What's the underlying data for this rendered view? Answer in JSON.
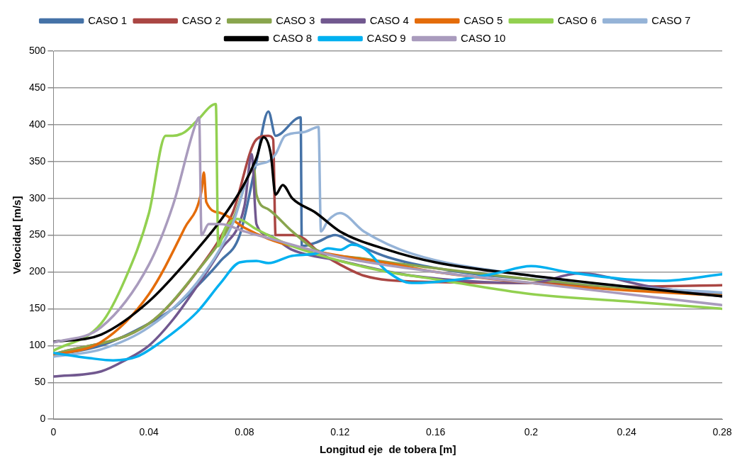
{
  "chart_data": {
    "type": "line",
    "xlabel": "Longitud eje  de tobera [m]",
    "ylabel": "Velocidad [m/s]",
    "xlim": [
      0,
      0.28
    ],
    "xticks": [
      0,
      0.04,
      0.08,
      0.12,
      0.16,
      0.2,
      0.24,
      0.28
    ],
    "ylim": [
      0,
      500
    ],
    "yticks": [
      0,
      50,
      100,
      150,
      200,
      250,
      300,
      350,
      400,
      450,
      500
    ],
    "grid": "y",
    "legend": "top",
    "marker": "none",
    "line_style": "solid",
    "series": [
      {
        "name": "CASO 1",
        "color": "#4572a7",
        "x": [
          0,
          0.02,
          0.04,
          0.05,
          0.06,
          0.07,
          0.078,
          0.085,
          0.09,
          0.093,
          0.1035,
          0.104,
          0.11,
          0.118,
          0.125,
          0.14,
          0.17,
          0.2,
          0.24,
          0.28
        ],
        "values": [
          87,
          100,
          130,
          150,
          180,
          215,
          250,
          350,
          418,
          385,
          410,
          235,
          240,
          250,
          240,
          220,
          200,
          190,
          180,
          170
        ]
      },
      {
        "name": "CASO 2",
        "color": "#aa4643",
        "x": [
          0,
          0.04,
          0.06,
          0.075,
          0.085,
          0.09,
          0.092,
          0.093,
          0.1,
          0.105,
          0.11,
          0.12,
          0.13,
          0.15,
          0.2,
          0.24,
          0.28
        ],
        "values": [
          88,
          130,
          200,
          280,
          380,
          385,
          380,
          250,
          250,
          245,
          230,
          210,
          195,
          187,
          185,
          180,
          182
        ]
      },
      {
        "name": "CASO 3",
        "color": "#89a54e",
        "x": [
          0,
          0.04,
          0.06,
          0.075,
          0.084,
          0.085,
          0.09,
          0.1,
          0.11,
          0.13,
          0.16,
          0.2,
          0.24,
          0.28
        ],
        "values": [
          88,
          130,
          200,
          270,
          340,
          305,
          285,
          255,
          230,
          218,
          205,
          190,
          178,
          168
        ]
      },
      {
        "name": "CASO 4",
        "color": "#71588f",
        "x": [
          0,
          0.02,
          0.03,
          0.04,
          0.05,
          0.06,
          0.07,
          0.08,
          0.083,
          0.085,
          0.09,
          0.1,
          0.12,
          0.15,
          0.2,
          0.22,
          0.25,
          0.28
        ],
        "values": [
          58,
          65,
          80,
          100,
          135,
          180,
          230,
          290,
          360,
          265,
          250,
          230,
          215,
          195,
          185,
          198,
          180,
          167
        ]
      },
      {
        "name": "CASO 5",
        "color": "#e46c0a",
        "x": [
          0,
          0.02,
          0.04,
          0.055,
          0.062,
          0.063,
          0.064,
          0.07,
          0.08,
          0.09,
          0.1,
          0.12,
          0.14,
          0.16,
          0.2,
          0.24,
          0.28
        ],
        "values": [
          87,
          105,
          170,
          260,
          310,
          335,
          295,
          280,
          260,
          245,
          235,
          222,
          212,
          200,
          185,
          175,
          168
        ]
      },
      {
        "name": "CASO 6",
        "color": "#92d050",
        "x": [
          0,
          0.02,
          0.03,
          0.04,
          0.047,
          0.05,
          0.055,
          0.06,
          0.068,
          0.069,
          0.072,
          0.077,
          0.085,
          0.1,
          0.12,
          0.14,
          0.16,
          0.2,
          0.24,
          0.28
        ],
        "values": [
          93,
          130,
          190,
          280,
          385,
          385,
          390,
          405,
          428,
          235,
          260,
          272,
          258,
          235,
          215,
          200,
          190,
          170,
          160,
          150
        ]
      },
      {
        "name": "CASO 7",
        "color": "#95b3d7",
        "x": [
          0,
          0.02,
          0.04,
          0.06,
          0.075,
          0.083,
          0.09,
          0.093,
          0.097,
          0.105,
          0.111,
          0.112,
          0.115,
          0.12,
          0.13,
          0.15,
          0.2,
          0.24,
          0.28
        ],
        "values": [
          85,
          95,
          125,
          185,
          265,
          340,
          350,
          360,
          385,
          390,
          397,
          255,
          270,
          280,
          255,
          225,
          195,
          180,
          172
        ]
      },
      {
        "name": "CASO 8",
        "color": "#000000",
        "x": [
          0,
          0.02,
          0.04,
          0.06,
          0.07,
          0.08,
          0.085,
          0.088,
          0.091,
          0.093,
          0.096,
          0.1,
          0.11,
          0.12,
          0.14,
          0.16,
          0.2,
          0.24,
          0.28
        ],
        "values": [
          105,
          115,
          160,
          230,
          270,
          320,
          355,
          383,
          360,
          305,
          318,
          300,
          280,
          255,
          230,
          213,
          195,
          180,
          167
        ]
      },
      {
        "name": "CASO 9",
        "color": "#00b0f0",
        "x": [
          0,
          0.015,
          0.025,
          0.035,
          0.045,
          0.06,
          0.07,
          0.078,
          0.085,
          0.09,
          0.1,
          0.11,
          0.115,
          0.12,
          0.125,
          0.13,
          0.14,
          0.15,
          0.17,
          0.185,
          0.2,
          0.215,
          0.24,
          0.255,
          0.28
        ],
        "values": [
          90,
          83,
          80,
          85,
          105,
          145,
          185,
          213,
          215,
          212,
          222,
          225,
          232,
          230,
          237,
          232,
          200,
          185,
          190,
          198,
          208,
          200,
          190,
          188,
          197
        ]
      },
      {
        "name": "CASO 10",
        "color": "#a99bbd",
        "x": [
          0,
          0.02,
          0.04,
          0.05,
          0.06,
          0.061,
          0.062,
          0.065,
          0.07,
          0.08,
          0.1,
          0.12,
          0.16,
          0.2,
          0.24,
          0.28
        ],
        "values": [
          104,
          125,
          210,
          290,
          405,
          410,
          250,
          265,
          265,
          255,
          237,
          220,
          200,
          185,
          170,
          155
        ]
      }
    ]
  }
}
